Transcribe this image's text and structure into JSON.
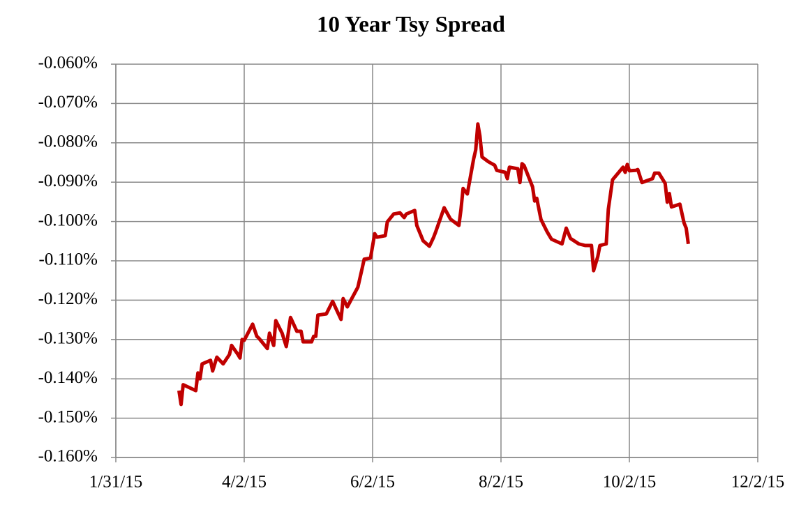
{
  "chart_data": {
    "type": "line",
    "title": "10 Year Tsy Spread",
    "x": [
      "3/2/15",
      "3/3/15",
      "3/4/15",
      "3/10/15",
      "3/11/15",
      "3/12/15",
      "3/13/15",
      "3/17/15",
      "3/18/15",
      "3/20/15",
      "3/23/15",
      "3/26/15",
      "3/27/15",
      "3/30/15",
      "3/31/15",
      "4/1/15",
      "4/2/15",
      "4/6/15",
      "4/8/15",
      "4/9/15",
      "4/13/15",
      "4/14/15",
      "4/16/15",
      "4/17/15",
      "4/20/15",
      "4/22/15",
      "4/24/15",
      "4/27/15",
      "4/29/15",
      "4/30/15",
      "5/4/15",
      "5/5/15",
      "5/6/15",
      "5/7/15",
      "5/11/15",
      "5/14/15",
      "5/18/15",
      "5/19/15",
      "5/21/15",
      "5/26/15",
      "5/28/15",
      "5/29/15",
      "6/1/15",
      "6/3/15",
      "6/4/15",
      "6/8/15",
      "6/9/15",
      "6/12/15",
      "6/15/15",
      "6/17/15",
      "6/18/15",
      "6/22/15",
      "6/23/15",
      "6/26/15",
      "6/29/15",
      "7/1/15",
      "7/2/15",
      "7/6/15",
      "7/9/15",
      "7/13/15",
      "7/14/15",
      "7/15/15",
      "7/17/15",
      "7/20/15",
      "7/21/15",
      "7/22/15",
      "7/23/15",
      "7/24/15",
      "7/27/15",
      "7/30/15",
      "7/31/15",
      "8/4/15",
      "8/5/15",
      "8/6/15",
      "8/10/15",
      "8/11/15",
      "8/12/15",
      "8/13/15",
      "8/17/15",
      "8/18/15",
      "8/19/15",
      "8/21/15",
      "8/24/15",
      "8/26/15",
      "8/31/15",
      "9/2/15",
      "9/4/15",
      "9/8/15",
      "9/11/15",
      "9/14/15",
      "9/15/15",
      "9/17/15",
      "9/18/15",
      "9/21/15",
      "9/22/15",
      "9/24/15",
      "9/29/15",
      "9/30/15",
      "10/1/15",
      "10/2/15",
      "10/5/15",
      "10/6/15",
      "10/8/15",
      "10/13/15",
      "10/14/15",
      "10/16/15",
      "10/19/15",
      "10/20/15",
      "10/21/15",
      "10/22/15",
      "10/26/15",
      "10/28/15",
      "10/29/15",
      "10/30/15"
    ],
    "series": [
      {
        "color": "#c00000",
        "values": [
          -0.143,
          -0.1465,
          -0.1415,
          -0.143,
          -0.1385,
          -0.14,
          -0.1362,
          -0.1353,
          -0.138,
          -0.1345,
          -0.1362,
          -0.1338,
          -0.1315,
          -0.1338,
          -0.1347,
          -0.13,
          -0.1302,
          -0.1261,
          -0.1292,
          -0.1297,
          -0.1323,
          -0.1284,
          -0.1315,
          -0.1252,
          -0.1284,
          -0.1318,
          -0.1244,
          -0.1279,
          -0.1279,
          -0.1306,
          -0.1306,
          -0.1292,
          -0.1292,
          -0.1238,
          -0.1235,
          -0.1203,
          -0.1249,
          -0.1196,
          -0.1217,
          -0.1167,
          -0.112,
          -0.1096,
          -0.1093,
          -0.1031,
          -0.104,
          -0.1036,
          -0.1001,
          -0.0981,
          -0.0978,
          -0.099,
          -0.0981,
          -0.0972,
          -0.101,
          -0.1049,
          -0.1063,
          -0.104,
          -0.1026,
          -0.0965,
          -0.0994,
          -0.101,
          -0.0969,
          -0.0916,
          -0.093,
          -0.0841,
          -0.0818,
          -0.0752,
          -0.0783,
          -0.0836,
          -0.0848,
          -0.0857,
          -0.087,
          -0.0875,
          -0.0891,
          -0.0862,
          -0.0866,
          -0.0901,
          -0.0853,
          -0.0858,
          -0.0912,
          -0.0948,
          -0.0941,
          -0.0995,
          -0.1027,
          -0.1045,
          -0.1057,
          -0.1017,
          -0.1043,
          -0.1057,
          -0.1061,
          -0.1061,
          -0.1125,
          -0.1089,
          -0.1061,
          -0.1057,
          -0.0969,
          -0.0894,
          -0.0862,
          -0.0875,
          -0.0855,
          -0.0871,
          -0.087,
          -0.0868,
          -0.0901,
          -0.0891,
          -0.0877,
          -0.0877,
          -0.0903,
          -0.0951,
          -0.0929,
          -0.0963,
          -0.0956,
          -0.1004,
          -0.1017,
          -0.1057
        ]
      }
    ],
    "xlim": [
      "1/31/15",
      "12/2/15"
    ],
    "xticks": [
      "1/31/15",
      "4/2/15",
      "6/2/15",
      "8/2/15",
      "10/2/15",
      "12/2/15"
    ],
    "ylim": [
      -0.16,
      -0.06
    ],
    "yticks": [
      {
        "value": -0.16,
        "label": "-0.160%"
      },
      {
        "value": -0.15,
        "label": "-0.150%"
      },
      {
        "value": -0.14,
        "label": "-0.140%"
      },
      {
        "value": -0.13,
        "label": "-0.130%"
      },
      {
        "value": -0.12,
        "label": "-0.120%"
      },
      {
        "value": -0.11,
        "label": "-0.110%"
      },
      {
        "value": -0.1,
        "label": "-0.100%"
      },
      {
        "value": -0.09,
        "label": "-0.090%"
      },
      {
        "value": -0.08,
        "label": "-0.080%"
      },
      {
        "value": -0.07,
        "label": "-0.070%"
      },
      {
        "value": -0.06,
        "label": "-0.060%"
      }
    ],
    "grid": true
  }
}
